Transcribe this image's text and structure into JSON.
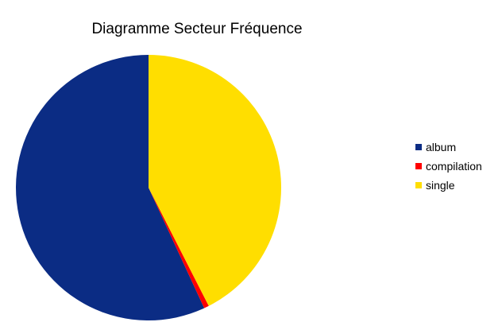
{
  "chart_data": {
    "type": "pie",
    "title": "Diagramme Secteur Fréquence",
    "legend_position": "right",
    "slices": [
      {
        "label": "album",
        "value": 56.9,
        "color": "#0b2c84"
      },
      {
        "label": "compilation",
        "value": 0.6,
        "color": "#ff0000"
      },
      {
        "label": "single",
        "value": 42.5,
        "color": "#ffde00"
      }
    ]
  }
}
